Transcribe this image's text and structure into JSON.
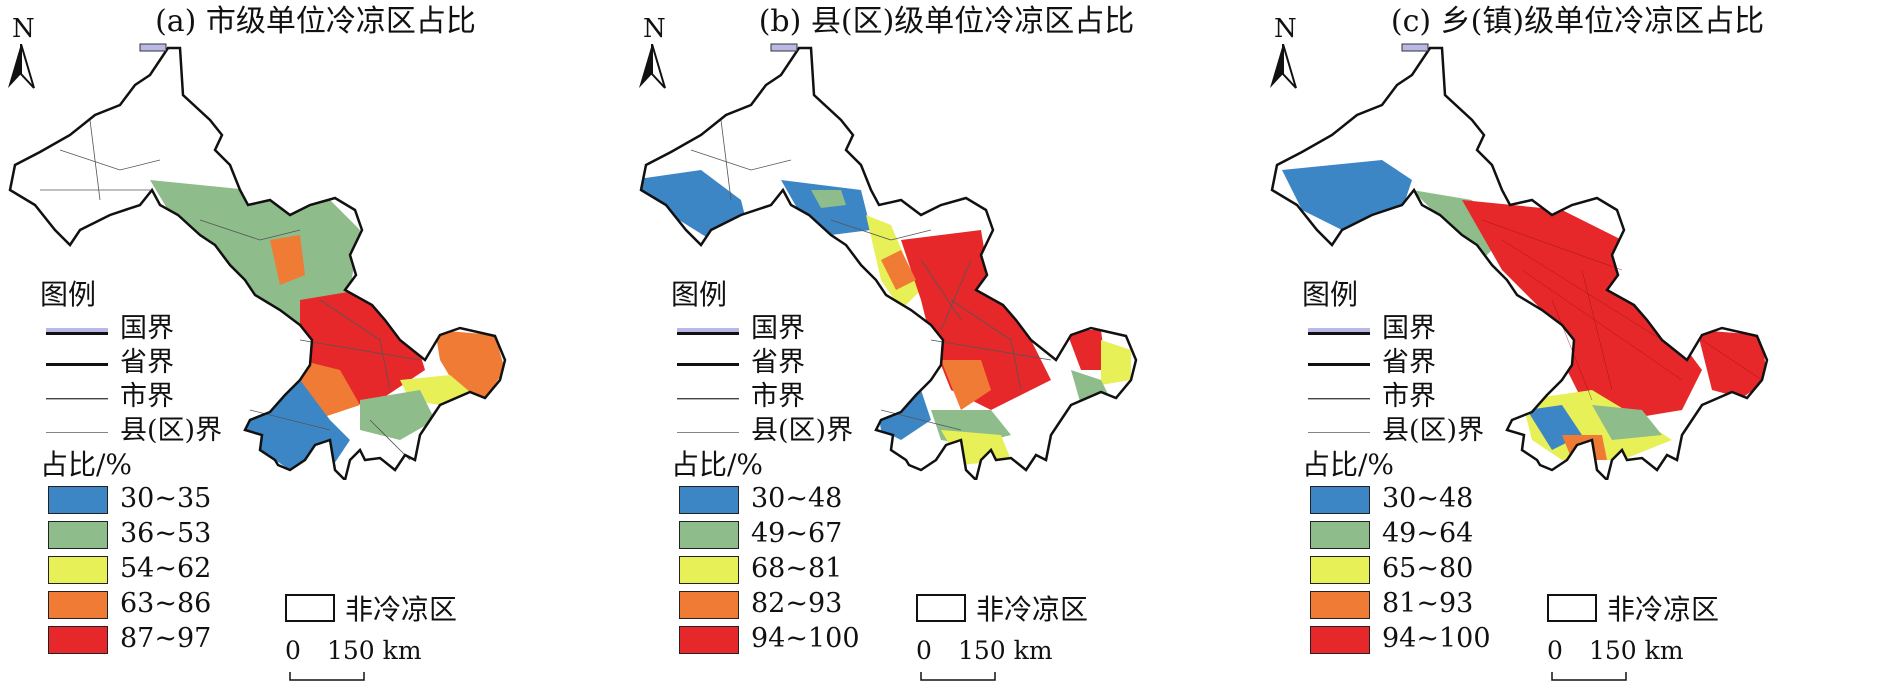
{
  "north_letter": "N",
  "colors": {
    "c1": "#3d86c6",
    "c2": "#8fbc8b",
    "c3": "#e8f058",
    "c4": "#f07b34",
    "c5": "#e6282a",
    "non_cold": "#ffffff",
    "national_border": "#b9b8e6"
  },
  "legend_common": {
    "title": "图例",
    "national": "国界",
    "provincial": "省界",
    "city": "市界",
    "county": "县(区)界",
    "ratio_title": "占比/%",
    "non_cold": "非冷凉区",
    "scale_zero": "0",
    "scale_dist": "150 km"
  },
  "panels": [
    {
      "title": "(a) 市级单位冷凉区占比",
      "classes": [
        "30~35",
        "36~53",
        "54~62",
        "63~86",
        "87~97"
      ]
    },
    {
      "title": "(b) 县(区)级单位冷凉区占比",
      "classes": [
        "30~48",
        "49~67",
        "68~81",
        "82~93",
        "94~100"
      ]
    },
    {
      "title": "(c) 乡(镇)级单位冷凉区占比",
      "classes": [
        "30~48",
        "49~64",
        "65~80",
        "81~93",
        "94~100"
      ]
    }
  ]
}
